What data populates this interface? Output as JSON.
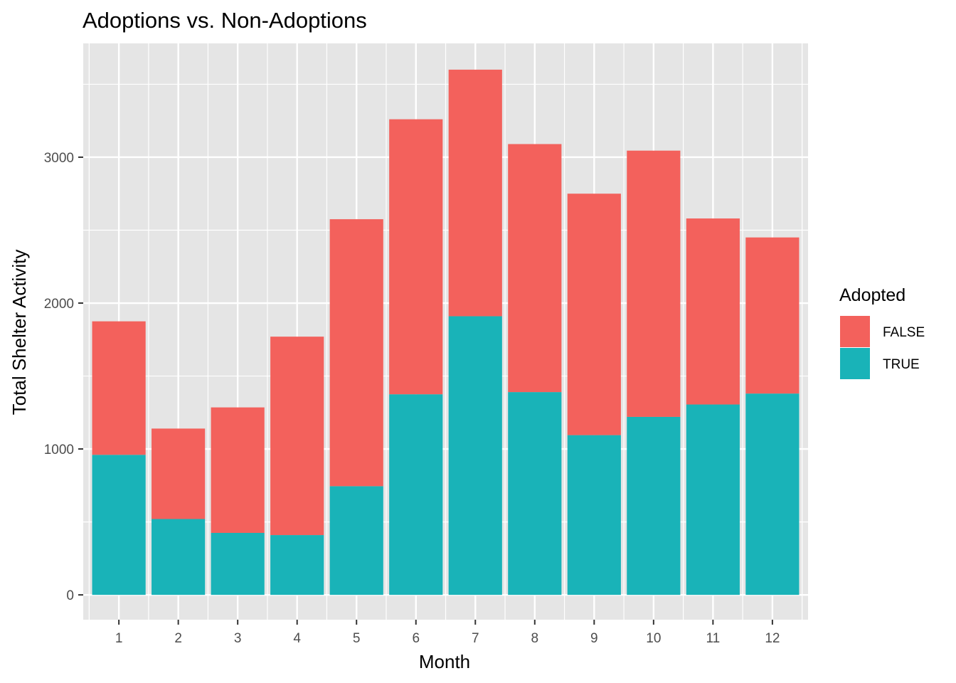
{
  "chart_data": {
    "type": "bar",
    "stacked": true,
    "title": "Adoptions vs. Non-Adoptions",
    "xlabel": "Month",
    "ylabel": "Total Shelter Activity",
    "categories": [
      "1",
      "2",
      "3",
      "4",
      "5",
      "6",
      "7",
      "8",
      "9",
      "10",
      "11",
      "12"
    ],
    "series": [
      {
        "name": "TRUE",
        "color": "#19b3b8",
        "values": [
          960,
          520,
          425,
          410,
          745,
          1375,
          1910,
          1390,
          1095,
          1220,
          1305,
          1380
        ]
      },
      {
        "name": "FALSE",
        "color": "#f3615c",
        "values": [
          915,
          620,
          860,
          1360,
          1830,
          1885,
          1690,
          1700,
          1655,
          1825,
          1275,
          1070
        ]
      }
    ],
    "yticks": [
      0,
      1000,
      2000,
      3000
    ],
    "ylim": [
      -170,
      3780
    ],
    "grid": true,
    "panel_background": "#e5e5e5",
    "legend": {
      "title": "Adopted",
      "position": "right",
      "entries": [
        {
          "label": "FALSE",
          "color": "#f3615c"
        },
        {
          "label": "TRUE",
          "color": "#19b3b8"
        }
      ]
    }
  }
}
